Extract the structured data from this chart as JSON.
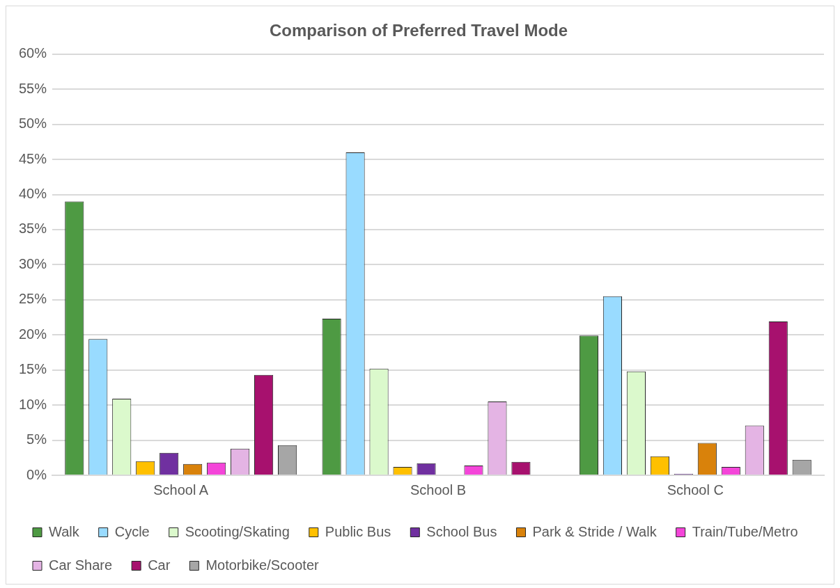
{
  "chart_data": {
    "type": "bar",
    "title": "Comparison of Preferred Travel Mode",
    "categories": [
      "School A",
      "School B",
      "School C"
    ],
    "series": [
      {
        "name": "Walk",
        "color": "#4e9a43",
        "values": [
          39,
          22.3,
          19.9
        ]
      },
      {
        "name": "Cycle",
        "color": "#99dbff",
        "values": [
          19.4,
          46,
          25.5
        ]
      },
      {
        "name": "Scooting/Skating",
        "color": "#dbf9cc",
        "values": [
          10.9,
          15.2,
          14.8
        ]
      },
      {
        "name": "Public Bus",
        "color": "#ffc000",
        "values": [
          2.0,
          1.2,
          2.7
        ]
      },
      {
        "name": "School Bus",
        "color": "#7030a0",
        "values": [
          3.2,
          1.7,
          0.2
        ]
      },
      {
        "name": "Park & Stride / Walk",
        "color": "#d9820b",
        "values": [
          1.6,
          0,
          4.6
        ]
      },
      {
        "name": "Train/Tube/Metro",
        "color": "#f445d9",
        "values": [
          1.8,
          1.4,
          1.2
        ]
      },
      {
        "name": "Car Share",
        "color": "#e4b4e4",
        "values": [
          3.8,
          10.5,
          7.1
        ]
      },
      {
        "name": "Car",
        "color": "#a7116e",
        "values": [
          14.3,
          1.9,
          21.9
        ]
      },
      {
        "name": "Motorbike/Scooter",
        "color": "#a6a6a6",
        "values": [
          4.3,
          0,
          2.2
        ]
      }
    ],
    "ylim": [
      0,
      60
    ],
    "yticks": [
      {
        "value": 0,
        "label": "0%"
      },
      {
        "value": 5,
        "label": "5%"
      },
      {
        "value": 10,
        "label": "10%"
      },
      {
        "value": 15,
        "label": "15%"
      },
      {
        "value": 20,
        "label": "20%"
      },
      {
        "value": 25,
        "label": "25%"
      },
      {
        "value": 30,
        "label": "30%"
      },
      {
        "value": 35,
        "label": "35%"
      },
      {
        "value": 40,
        "label": "40%"
      },
      {
        "value": 45,
        "label": "45%"
      },
      {
        "value": 50,
        "label": "50%"
      },
      {
        "value": 55,
        "label": "55%"
      },
      {
        "value": 60,
        "label": "60%"
      }
    ],
    "grid": "y",
    "legend": "bottom"
  }
}
